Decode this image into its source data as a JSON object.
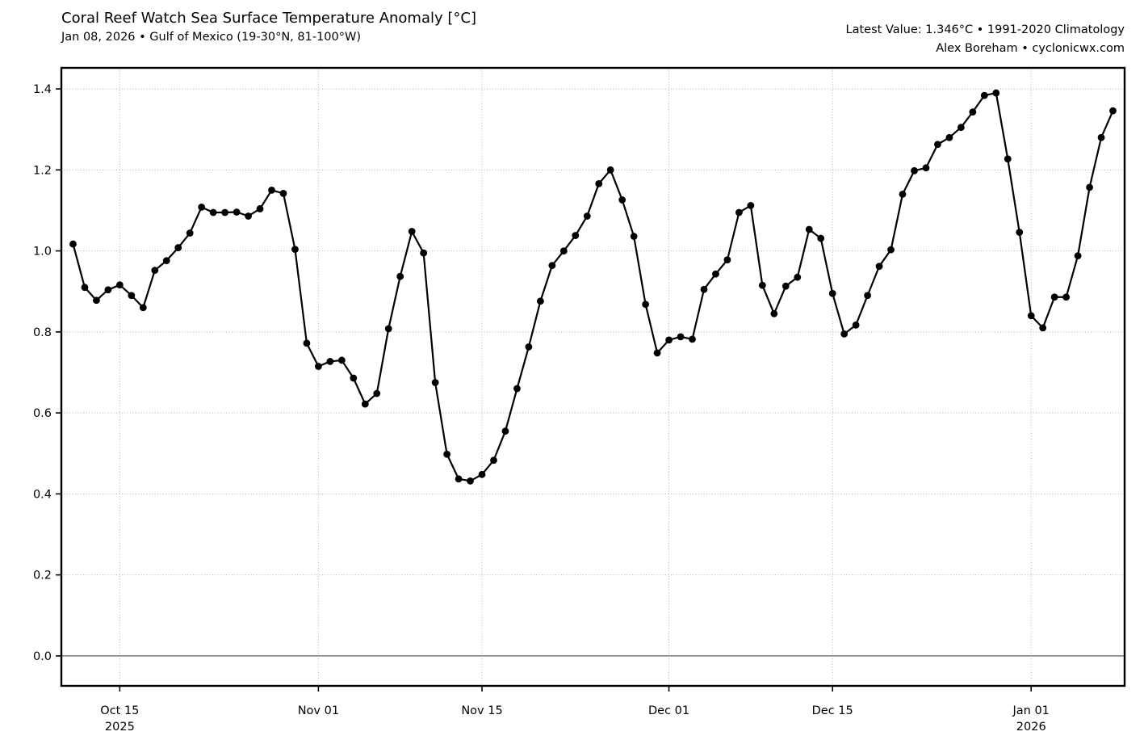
{
  "header": {
    "latest_line": "Latest Value: 1.346°C • 1991-2020 Climatology",
    "credit_line": "Alex Boreham • cyclonicwx.com"
  },
  "chart_data": {
    "type": "line",
    "title": "Coral Reef Watch Sea Surface Temperature Anomaly [°C]",
    "subtitle": "Jan 08, 2026 • Gulf of Mexico (19-30°N, 81-100°W)",
    "latest_value_c": 1.346,
    "climatology": "1991-2020",
    "xlabel": "",
    "ylabel": "",
    "ylim": [
      -0.074,
      1.452
    ],
    "y_ticks": [
      0.0,
      0.2,
      0.4,
      0.6,
      0.8,
      1.0,
      1.2,
      1.4
    ],
    "grid": "dotted",
    "legend": "none",
    "line_color": "#000000",
    "marker_color": "#000000",
    "zero_line_color": "#8a8a8a",
    "grid_color": "#b0b0b0",
    "x_ticks": [
      {
        "date": "2025-10-15",
        "label": "Oct 15",
        "year_label": "2025"
      },
      {
        "date": "2025-11-01",
        "label": "Nov 01",
        "year_label": ""
      },
      {
        "date": "2025-11-15",
        "label": "Nov 15",
        "year_label": ""
      },
      {
        "date": "2025-12-01",
        "label": "Dec 01",
        "year_label": ""
      },
      {
        "date": "2025-12-15",
        "label": "Dec 15",
        "year_label": ""
      },
      {
        "date": "2026-01-01",
        "label": "Jan 01",
        "year_label": "2026"
      }
    ],
    "x": [
      "2025-10-11",
      "2025-10-12",
      "2025-10-13",
      "2025-10-14",
      "2025-10-15",
      "2025-10-16",
      "2025-10-17",
      "2025-10-18",
      "2025-10-19",
      "2025-10-20",
      "2025-10-21",
      "2025-10-22",
      "2025-10-23",
      "2025-10-24",
      "2025-10-25",
      "2025-10-26",
      "2025-10-27",
      "2025-10-28",
      "2025-10-29",
      "2025-10-30",
      "2025-10-31",
      "2025-11-01",
      "2025-11-02",
      "2025-11-03",
      "2025-11-04",
      "2025-11-05",
      "2025-11-06",
      "2025-11-07",
      "2025-11-08",
      "2025-11-09",
      "2025-11-10",
      "2025-11-11",
      "2025-11-12",
      "2025-11-13",
      "2025-11-14",
      "2025-11-15",
      "2025-11-16",
      "2025-11-17",
      "2025-11-18",
      "2025-11-19",
      "2025-11-20",
      "2025-11-21",
      "2025-11-22",
      "2025-11-23",
      "2025-11-24",
      "2025-11-25",
      "2025-11-26",
      "2025-11-27",
      "2025-11-28",
      "2025-11-29",
      "2025-11-30",
      "2025-12-01",
      "2025-12-02",
      "2025-12-03",
      "2025-12-04",
      "2025-12-05",
      "2025-12-06",
      "2025-12-07",
      "2025-12-08",
      "2025-12-09",
      "2025-12-10",
      "2025-12-11",
      "2025-12-12",
      "2025-12-13",
      "2025-12-14",
      "2025-12-15",
      "2025-12-16",
      "2025-12-17",
      "2025-12-18",
      "2025-12-19",
      "2025-12-20",
      "2025-12-21",
      "2025-12-22",
      "2025-12-23",
      "2025-12-24",
      "2025-12-25",
      "2025-12-26",
      "2025-12-27",
      "2025-12-28",
      "2025-12-29",
      "2025-12-30",
      "2025-12-31",
      "2026-01-01",
      "2026-01-02",
      "2026-01-03",
      "2026-01-04",
      "2026-01-05",
      "2026-01-06",
      "2026-01-07",
      "2026-01-08"
    ],
    "values": [
      1.017,
      0.91,
      0.878,
      0.904,
      0.916,
      0.89,
      0.86,
      0.952,
      0.976,
      1.008,
      1.044,
      1.108,
      1.095,
      1.095,
      1.096,
      1.086,
      1.104,
      1.15,
      1.142,
      1.004,
      0.772,
      0.715,
      0.727,
      0.73,
      0.686,
      0.622,
      0.648,
      0.808,
      0.937,
      1.048,
      0.995,
      0.675,
      0.498,
      0.437,
      0.432,
      0.448,
      0.483,
      0.555,
      0.66,
      0.763,
      0.876,
      0.964,
      1.0,
      1.038,
      1.086,
      1.166,
      1.2,
      1.126,
      1.036,
      0.868,
      0.748,
      0.78,
      0.788,
      0.782,
      0.905,
      0.943,
      0.978,
      1.095,
      1.112,
      0.915,
      0.845,
      0.913,
      0.935,
      1.053,
      1.031,
      0.895,
      0.795,
      0.817,
      0.89,
      0.962,
      1.003,
      1.14,
      1.198,
      1.205,
      1.263,
      1.28,
      1.305,
      1.343,
      1.384,
      1.39,
      1.227,
      1.046,
      0.84,
      0.81,
      0.886,
      0.886,
      0.988,
      1.157,
      1.28,
      1.346
    ]
  }
}
